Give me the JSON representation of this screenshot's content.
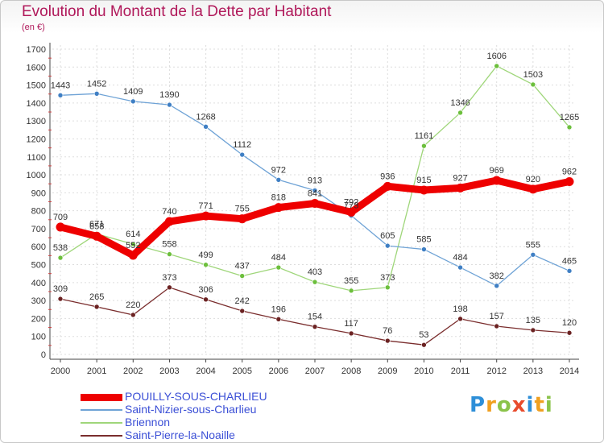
{
  "header": {
    "title": "Evolution du Montant de la Dette par Habitant",
    "subtitle": "(en €)"
  },
  "logo": {
    "text": "Proxiti",
    "letters": [
      "P",
      "r",
      "o",
      "x",
      "i",
      "t",
      "i"
    ],
    "colors": [
      "#2e8fd8",
      "#f0a020",
      "#8bc34a",
      "#e84b2c",
      "#2e8fd8",
      "#f0a020",
      "#8bc34a"
    ]
  },
  "chart_data": {
    "type": "line",
    "title": "Evolution du Montant de la Dette par Habitant",
    "subtitle": "(en €)",
    "xlabel": "",
    "ylabel": "",
    "x": [
      "2000",
      "2001",
      "2002",
      "2003",
      "2004",
      "2005",
      "2006",
      "2007",
      "2008",
      "2009",
      "2010",
      "2011",
      "2012",
      "2013",
      "2014"
    ],
    "ylim": [
      0,
      1700
    ],
    "yticks": [
      0,
      100,
      200,
      300,
      400,
      500,
      600,
      700,
      800,
      900,
      1000,
      1100,
      1200,
      1300,
      1400,
      1500,
      1600,
      1700
    ],
    "grid": true,
    "legend_position": "bottom-left",
    "series": [
      {
        "name": "POUILLY-SOUS-CHARLIEU",
        "color": "#ee0000",
        "dot_color": "#ee0000",
        "emphasis": true,
        "values": [
          709,
          658,
          552,
          740,
          771,
          755,
          818,
          841,
          792,
          936,
          915,
          927,
          969,
          920,
          962
        ]
      },
      {
        "name": "Saint-Nizier-sous-Charlieu",
        "color": "#6fa3d6",
        "dot_color": "#3f7fc4",
        "values": [
          1443,
          1452,
          1409,
          1390,
          1268,
          1112,
          972,
          913,
          773,
          605,
          585,
          484,
          382,
          555,
          465
        ]
      },
      {
        "name": "Briennon",
        "color": "#9fd67a",
        "dot_color": "#6cbf3c",
        "values": [
          538,
          671,
          614,
          558,
          499,
          437,
          484,
          403,
          355,
          373,
          1161,
          1346,
          1606,
          1503,
          1265
        ]
      },
      {
        "name": "Saint-Pierre-la-Noaille",
        "color": "#7a2d2d",
        "dot_color": "#6b2222",
        "values": [
          309,
          265,
          220,
          373,
          306,
          242,
          196,
          154,
          117,
          76,
          53,
          198,
          157,
          135,
          120
        ]
      }
    ]
  }
}
